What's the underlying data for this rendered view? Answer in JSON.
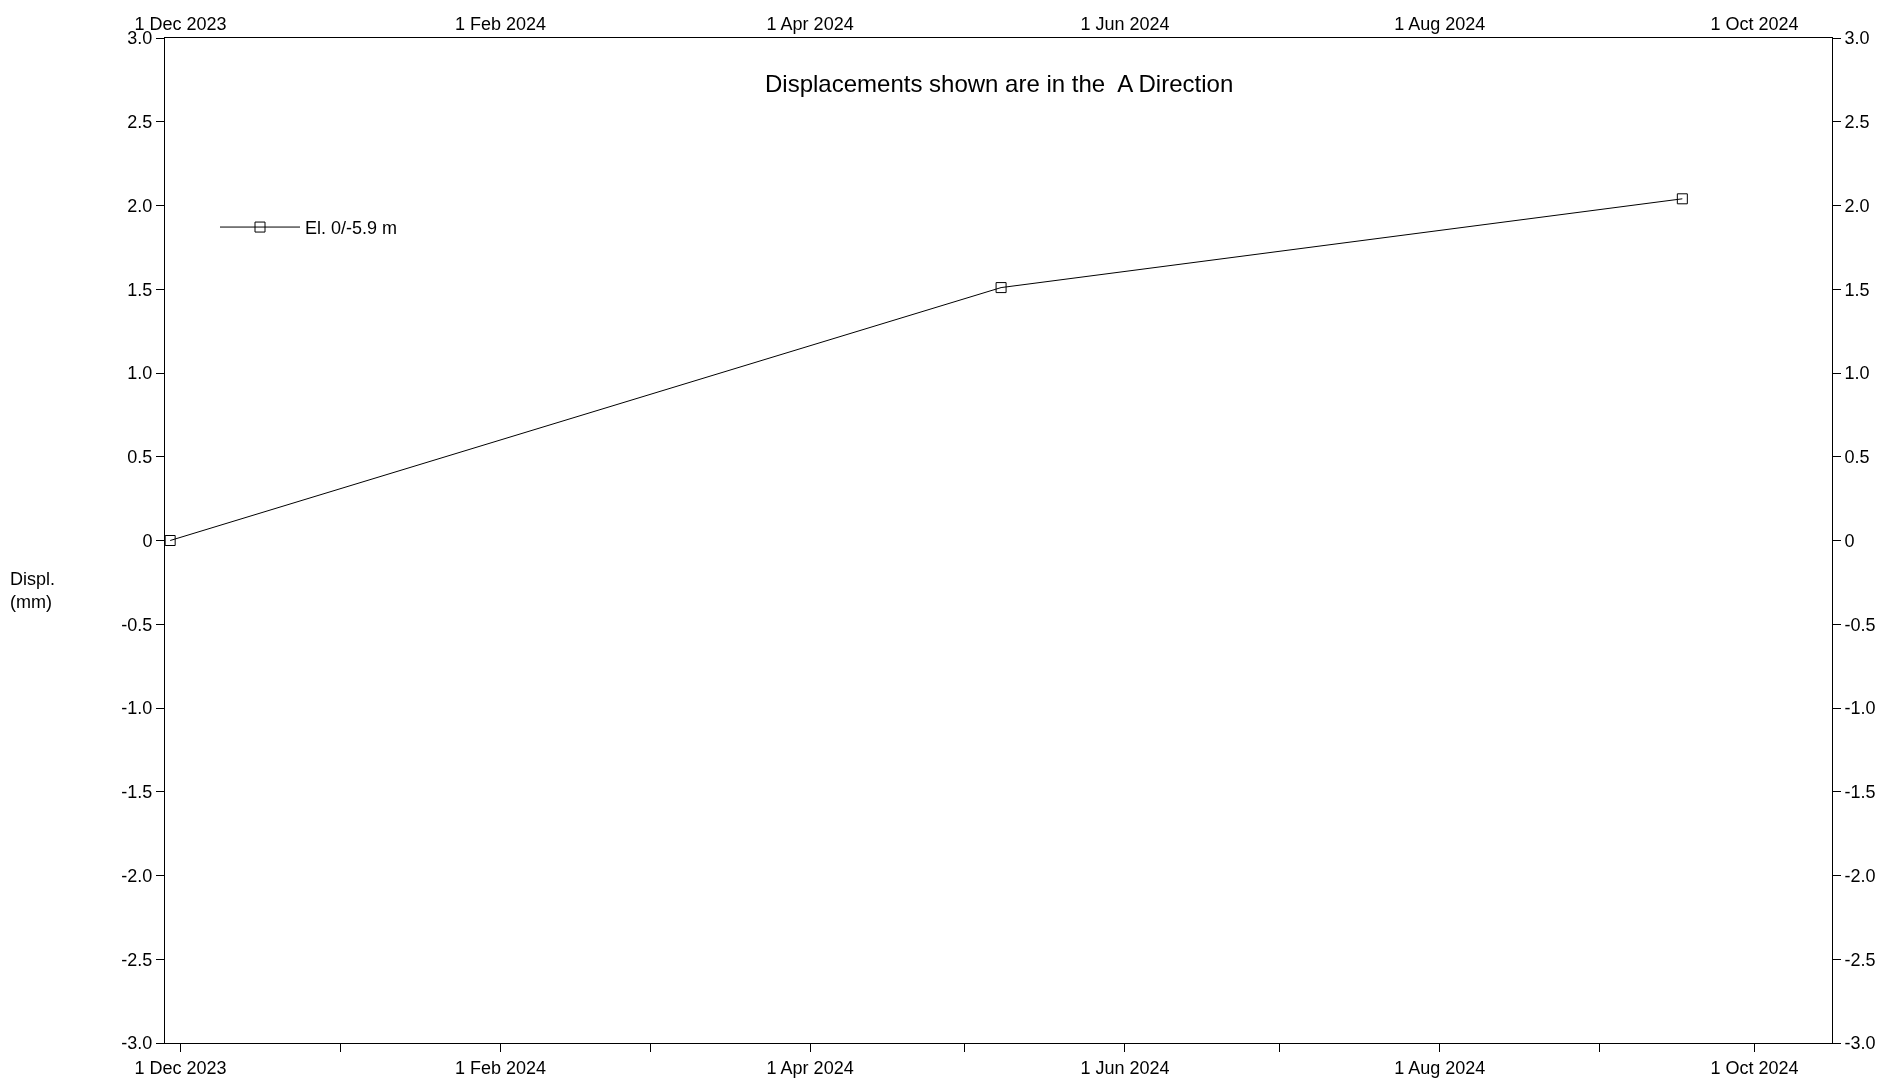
{
  "chart_data": {
    "type": "line",
    "title": "Displacements shown are in the  A Direction",
    "ylabel": "Displ.\n(mm)",
    "x": [
      "2023-11-29",
      "2024-05-08",
      "2024-09-17"
    ],
    "series": [
      {
        "name": "El. 0/-5.9 m",
        "color": "#000000",
        "values": [
          0,
          1.51,
          2.04
        ]
      }
    ],
    "xlim": [
      "2023-11-28",
      "2024-10-16"
    ],
    "xticks": [
      {
        "value": "2023-12-01",
        "label": "1 Dec 2023"
      },
      {
        "value": "2024-01-01",
        "label": null
      },
      {
        "value": "2024-02-01",
        "label": "1 Feb 2024"
      },
      {
        "value": "2024-03-01",
        "label": null
      },
      {
        "value": "2024-04-01",
        "label": "1 Apr 2024"
      },
      {
        "value": "2024-05-01",
        "label": null
      },
      {
        "value": "2024-06-01",
        "label": "1 Jun 2024"
      },
      {
        "value": "2024-07-01",
        "label": null
      },
      {
        "value": "2024-08-01",
        "label": "1 Aug 2024"
      },
      {
        "value": "2024-09-01",
        "label": null
      },
      {
        "value": "2024-10-01",
        "label": "1 Oct 2024"
      }
    ],
    "x2lim": [
      "2023-11-28",
      "2024-10-16"
    ],
    "x2ticks": [
      {
        "value": "2023-12-01",
        "label": "1 Dec 2023"
      },
      {
        "value": "2024-02-01",
        "label": "1 Feb 2024"
      },
      {
        "value": "2024-04-01",
        "label": "1 Apr 2024"
      },
      {
        "value": "2024-06-01",
        "label": "1 Jun 2024"
      },
      {
        "value": "2024-08-01",
        "label": "1 Aug 2024"
      },
      {
        "value": "2024-10-01",
        "label": "1 Oct 2024"
      }
    ],
    "ylim": [
      -3,
      3
    ],
    "yticks": [
      {
        "value": -3,
        "label": "-3.0"
      },
      {
        "value": -2.5,
        "label": "-2.5"
      },
      {
        "value": -2,
        "label": "-2.0"
      },
      {
        "value": -1.5,
        "label": "-1.5"
      },
      {
        "value": -1,
        "label": "-1.0"
      },
      {
        "value": -0.5,
        "label": "-0.5"
      },
      0,
      {
        "value": 0.5,
        "label": "0.5"
      },
      {
        "value": 1,
        "label": "1.0"
      },
      {
        "value": 1.5,
        "label": "1.5"
      },
      {
        "value": 2,
        "label": "2.0"
      },
      {
        "value": 2.5,
        "label": "2.5"
      },
      {
        "value": 3,
        "label": "3.0"
      }
    ],
    "y2lim": [
      -3,
      3
    ],
    "y2ticks": [
      {
        "value": -3,
        "label": "-3.0"
      },
      {
        "value": -2.5,
        "label": "-2.5"
      },
      {
        "value": -2,
        "label": "-2.0"
      },
      {
        "value": -1.5,
        "label": "-1.5"
      },
      {
        "value": -1,
        "label": "-1.0"
      },
      {
        "value": -0.5,
        "label": "-0.5"
      },
      0,
      {
        "value": 0.5,
        "label": "0.5"
      },
      {
        "value": 1,
        "label": "1.0"
      },
      {
        "value": 1.5,
        "label": "1.5"
      },
      {
        "value": 2,
        "label": "2.0"
      },
      {
        "value": 2.5,
        "label": "2.5"
      },
      {
        "value": 3,
        "label": "3.0"
      }
    ],
    "grid": false,
    "legend": "top left",
    "marker": "square",
    "line_style": "solid"
  }
}
